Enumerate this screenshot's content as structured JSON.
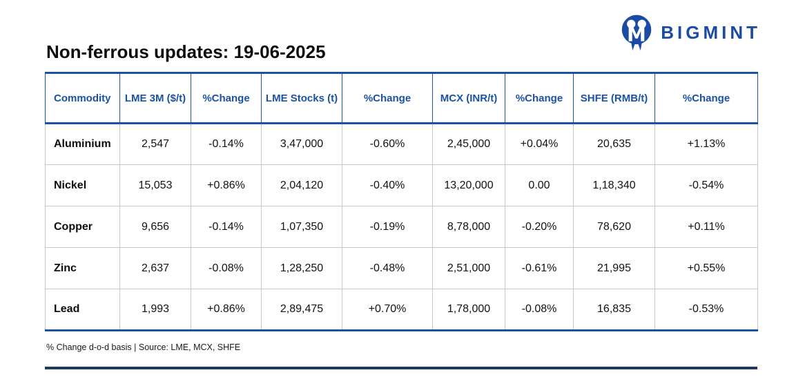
{
  "brand": {
    "name": "BIGMINT",
    "icon": "bigmint-two-people-m-logo",
    "color": "#1B4CA5"
  },
  "title": "Non-ferrous updates: 19-06-2025",
  "table": {
    "columns": [
      "Commodity",
      "LME 3M ($/t)",
      "%Change",
      "LME Stocks (t)",
      "%Change",
      "MCX (INR/t)",
      "%Change",
      "SHFE (RMB/t)",
      "%Change"
    ],
    "rows": [
      {
        "commodity": "Aluminium",
        "values": [
          {
            "text": "2,547",
            "trend": "neutral"
          },
          {
            "text": "-0.14%",
            "trend": "down"
          },
          {
            "text": "3,47,000",
            "trend": "neutral"
          },
          {
            "text": "-0.60%",
            "trend": "down"
          },
          {
            "text": "2,45,000",
            "trend": "neutral"
          },
          {
            "text": "+0.04%",
            "trend": "up"
          },
          {
            "text": "20,635",
            "trend": "neutral"
          },
          {
            "text": "+1.13%",
            "trend": "up"
          }
        ]
      },
      {
        "commodity": "Nickel",
        "values": [
          {
            "text": "15,053",
            "trend": "neutral"
          },
          {
            "text": "+0.86%",
            "trend": "up"
          },
          {
            "text": "2,04,120",
            "trend": "neutral"
          },
          {
            "text": "-0.40%",
            "trend": "down"
          },
          {
            "text": "13,20,000",
            "trend": "neutral"
          },
          {
            "text": "0.00",
            "trend": "neutral"
          },
          {
            "text": "1,18,340",
            "trend": "neutral"
          },
          {
            "text": "-0.54%",
            "trend": "down"
          }
        ]
      },
      {
        "commodity": "Copper",
        "values": [
          {
            "text": "9,656",
            "trend": "neutral"
          },
          {
            "text": "-0.14%",
            "trend": "down"
          },
          {
            "text": "1,07,350",
            "trend": "neutral"
          },
          {
            "text": "-0.19%",
            "trend": "down"
          },
          {
            "text": "8,78,000",
            "trend": "neutral"
          },
          {
            "text": "-0.20%",
            "trend": "down"
          },
          {
            "text": "78,620",
            "trend": "neutral"
          },
          {
            "text": "+0.11%",
            "trend": "up"
          }
        ]
      },
      {
        "commodity": "Zinc",
        "values": [
          {
            "text": "2,637",
            "trend": "neutral"
          },
          {
            "text": "-0.08%",
            "trend": "down"
          },
          {
            "text": "1,28,250",
            "trend": "neutral"
          },
          {
            "text": "-0.48%",
            "trend": "down"
          },
          {
            "text": "2,51,000",
            "trend": "neutral"
          },
          {
            "text": "-0.61%",
            "trend": "down"
          },
          {
            "text": "21,995",
            "trend": "neutral"
          },
          {
            "text": "+0.55%",
            "trend": "up"
          }
        ]
      },
      {
        "commodity": "Lead",
        "values": [
          {
            "text": "1,993",
            "trend": "neutral"
          },
          {
            "text": "+0.86%",
            "trend": "up"
          },
          {
            "text": "2,89,475",
            "trend": "neutral"
          },
          {
            "text": "+0.70%",
            "trend": "up"
          },
          {
            "text": "1,78,000",
            "trend": "neutral"
          },
          {
            "text": "-0.08%",
            "trend": "down"
          },
          {
            "text": "16,835",
            "trend": "neutral"
          },
          {
            "text": "-0.53%",
            "trend": "down"
          }
        ]
      }
    ]
  },
  "footer": {
    "note": "% Change d-o-d basis | Source: LME, MCX, SHFE"
  },
  "colors": {
    "brand_blue": "#1B4CA5",
    "header_text_blue": "#1A52A5",
    "table_border_blue": "#1A52A5",
    "row_divider_gray": "#C9C9C9",
    "positive_green": "#0FA75F",
    "negative_red": "#ED2024",
    "bottom_rule_navy": "#1F3864"
  }
}
